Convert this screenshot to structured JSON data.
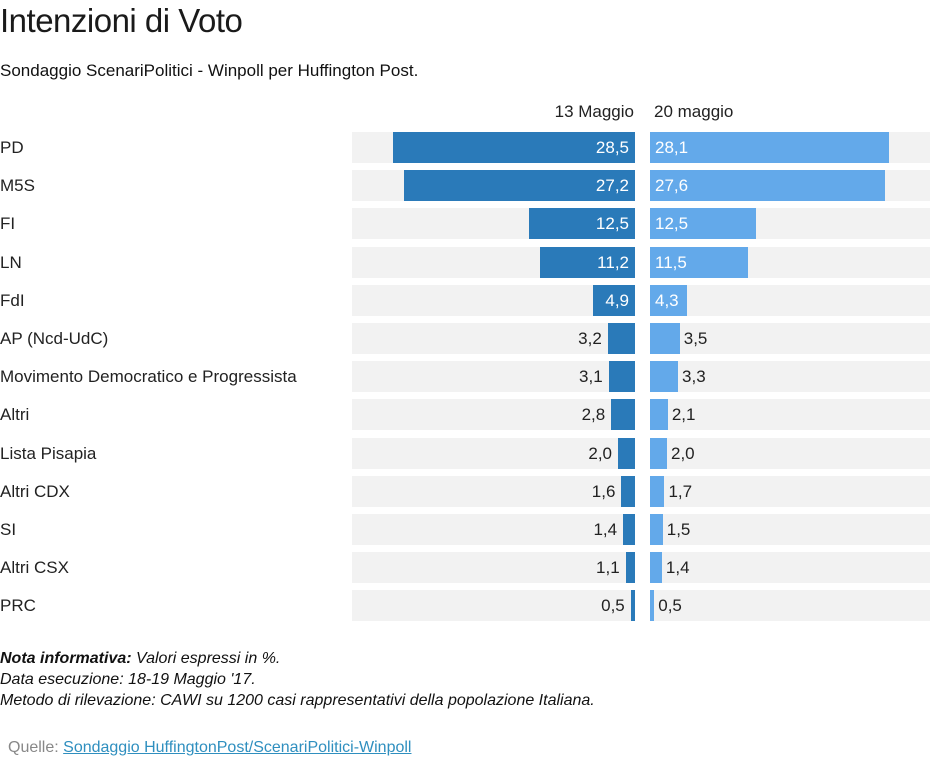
{
  "header": {
    "title": "Intenzioni di Voto",
    "subtitle": "Sondaggio ScenariPolitici - Winpoll per Huffington Post."
  },
  "notes": {
    "label": "Nota informativa:",
    "line1": " Valori espressi in %.",
    "line2": "Data esecuzione: 18-19 Maggio '17.",
    "line3": "Metodo di rilevazione: CAWI su 1200 casi rappresentativi della popolazione Italiana."
  },
  "source": {
    "label": "Quelle: ",
    "link_text": "Sondaggio HuffingtonPost/ScenariPolitici-Winpoll"
  },
  "colors": {
    "series_1": "#2a7ab9",
    "series_2": "#63a9ea",
    "track": "#f2f2f2"
  },
  "chart_data": {
    "type": "bar",
    "orientation": "horizontal-butterfly",
    "title": "Intenzioni di Voto",
    "subtitle": "Sondaggio ScenariPolitici - Winpoll per Huffington Post.",
    "xlabel": "",
    "ylabel": "",
    "unit": "%",
    "xlim": [
      0,
      32
    ],
    "grid": false,
    "categories": [
      "PD",
      "M5S",
      "FI",
      "LN",
      "FdI",
      "AP (Ncd-UdC)",
      "Movimento Democratico e Progressista",
      "Altri",
      "Lista Pisapia",
      "Altri CDX",
      "SI",
      "Altri CSX",
      "PRC"
    ],
    "series": [
      {
        "name": "13 Maggio",
        "side": "left",
        "values": [
          28.5,
          27.2,
          12.5,
          11.2,
          4.9,
          3.2,
          3.1,
          2.8,
          2.0,
          1.6,
          1.4,
          1.1,
          0.5
        ],
        "labels": [
          "28,5",
          "27,2",
          "12,5",
          "11,2",
          "4,9",
          "3,2",
          "3,1",
          "2,8",
          "2,0",
          "1,6",
          "1,4",
          "1,1",
          "0,5"
        ]
      },
      {
        "name": "20 maggio",
        "side": "right",
        "values": [
          28.1,
          27.6,
          12.5,
          11.5,
          4.3,
          3.5,
          3.3,
          2.1,
          2.0,
          1.7,
          1.5,
          1.4,
          0.5
        ],
        "labels": [
          "28,1",
          "27,6",
          "12,5",
          "11,5",
          "4,3",
          "3,5",
          "3,3",
          "2,1",
          "2,0",
          "1,7",
          "1,5",
          "1,4",
          "0,5"
        ]
      }
    ]
  }
}
